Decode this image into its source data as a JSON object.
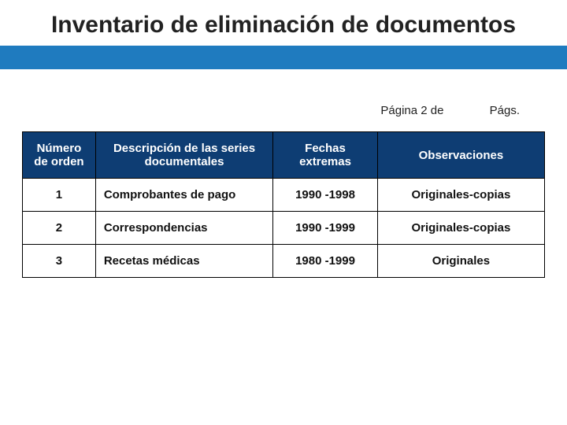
{
  "title": "Inventario de eliminación de documentos",
  "page_info": {
    "left": "Página 2 de",
    "right": "Págs."
  },
  "table": {
    "background_color": "#ffffff",
    "header_bg": "#0e3d73",
    "header_fg": "#ffffff",
    "border_color": "#000000",
    "columns": [
      {
        "label": "Número de orden",
        "key": "orden"
      },
      {
        "label": "Descripción de las series documentales",
        "key": "desc"
      },
      {
        "label": "Fechas extremas",
        "key": "fechas"
      },
      {
        "label": "Observaciones",
        "key": "obs"
      }
    ],
    "rows": [
      {
        "orden": "1",
        "desc": "Comprobantes de pago",
        "fechas": "1990 -1998",
        "obs": "Originales-copias"
      },
      {
        "orden": "2",
        "desc": "Correspondencias",
        "fechas": "1990 -1999",
        "obs": "Originales-copias"
      },
      {
        "orden": "3",
        "desc": "Recetas médicas",
        "fechas": "1980 -1999",
        "obs": "Originales"
      }
    ]
  },
  "colors": {
    "title_color": "#222222",
    "blue_bar": "#1f7bbf"
  }
}
